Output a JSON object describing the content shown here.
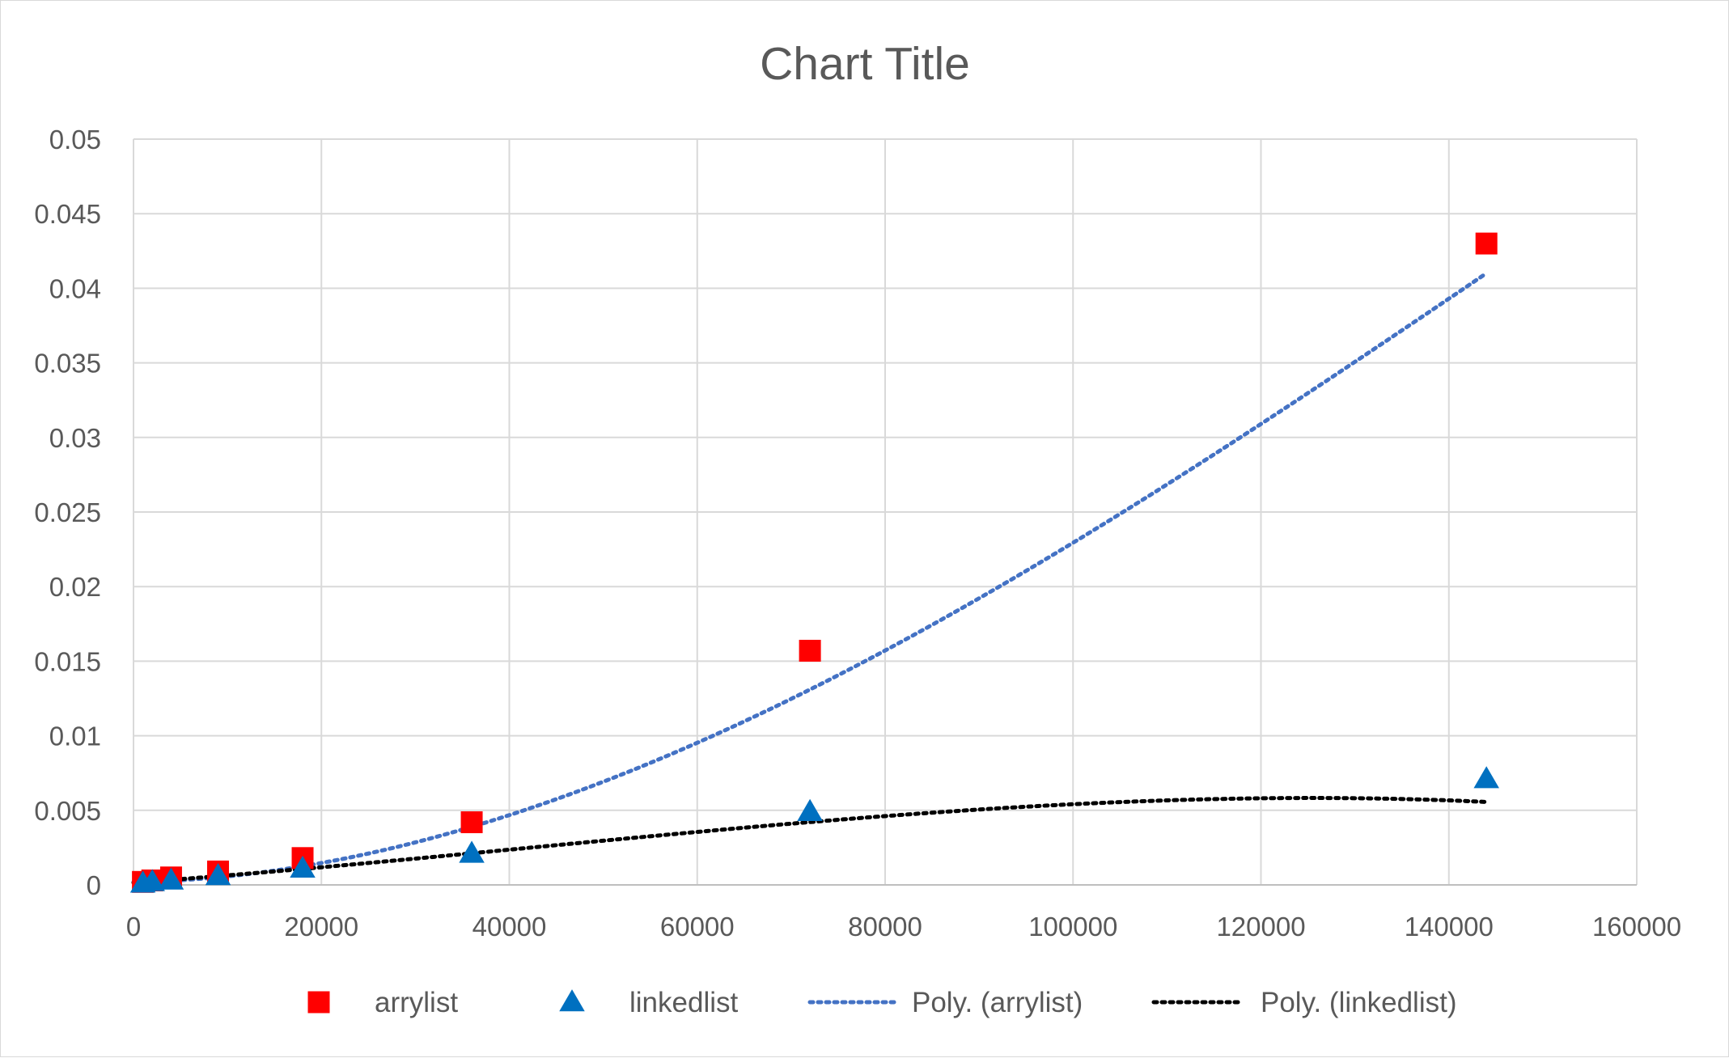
{
  "chart_data": {
    "type": "scatter",
    "title": "Chart Title",
    "xlabel": "",
    "ylabel": "",
    "xlim": [
      0,
      160000
    ],
    "ylim": [
      0,
      0.05
    ],
    "x_ticks": [
      0,
      20000,
      40000,
      60000,
      80000,
      100000,
      120000,
      140000,
      160000
    ],
    "y_ticks": [
      0,
      0.005,
      0.01,
      0.015,
      0.02,
      0.025,
      0.03,
      0.035,
      0.04,
      0.045,
      0.05
    ],
    "x_tick_labels": [
      "0",
      "20000",
      "40000",
      "60000",
      "80000",
      "100000",
      "120000",
      "140000",
      "160000"
    ],
    "y_tick_labels": [
      "0",
      "0.005",
      "0.01",
      "0.015",
      "0.02",
      "0.025",
      "0.03",
      "0.035",
      "0.04",
      "0.045",
      "0.05"
    ],
    "grid": true,
    "legend_position": "bottom",
    "series": [
      {
        "name": "arrylist",
        "marker": "square",
        "color": "#ff0000",
        "points": [
          {
            "x": 1000,
            "y": 0.0002
          },
          {
            "x": 2000,
            "y": 0.0003
          },
          {
            "x": 4000,
            "y": 0.0005
          },
          {
            "x": 9000,
            "y": 0.0009
          },
          {
            "x": 18000,
            "y": 0.0018
          },
          {
            "x": 36000,
            "y": 0.0042
          },
          {
            "x": 72000,
            "y": 0.0157
          },
          {
            "x": 144000,
            "y": 0.043
          }
        ]
      },
      {
        "name": "linkedlist",
        "marker": "triangle",
        "color": "#0070c0",
        "points": [
          {
            "x": 1000,
            "y": 0.0001
          },
          {
            "x": 2000,
            "y": 0.0002
          },
          {
            "x": 4000,
            "y": 0.0003
          },
          {
            "x": 9000,
            "y": 0.0006
          },
          {
            "x": 18000,
            "y": 0.0011
          },
          {
            "x": 36000,
            "y": 0.0021
          },
          {
            "x": 72000,
            "y": 0.0049
          },
          {
            "x": 144000,
            "y": 0.0071
          }
        ]
      }
    ],
    "trendlines": [
      {
        "name": "Poly. (arrylist)",
        "color": "#4472c4",
        "style": "dotted",
        "x_range": [
          0,
          144000
        ],
        "poly_coefficients": [
          0.0002,
          1e-08,
          2.8e-12,
          -6.26e-18
        ]
      },
      {
        "name": "Poly. (linkedlist)",
        "color": "#000000",
        "style": "dotted",
        "x_range": [
          0,
          144000
        ],
        "poly_coefficients": [
          0.00015,
          4.57e-08,
          3.54e-13,
          -2.85e-18
        ]
      }
    ]
  }
}
